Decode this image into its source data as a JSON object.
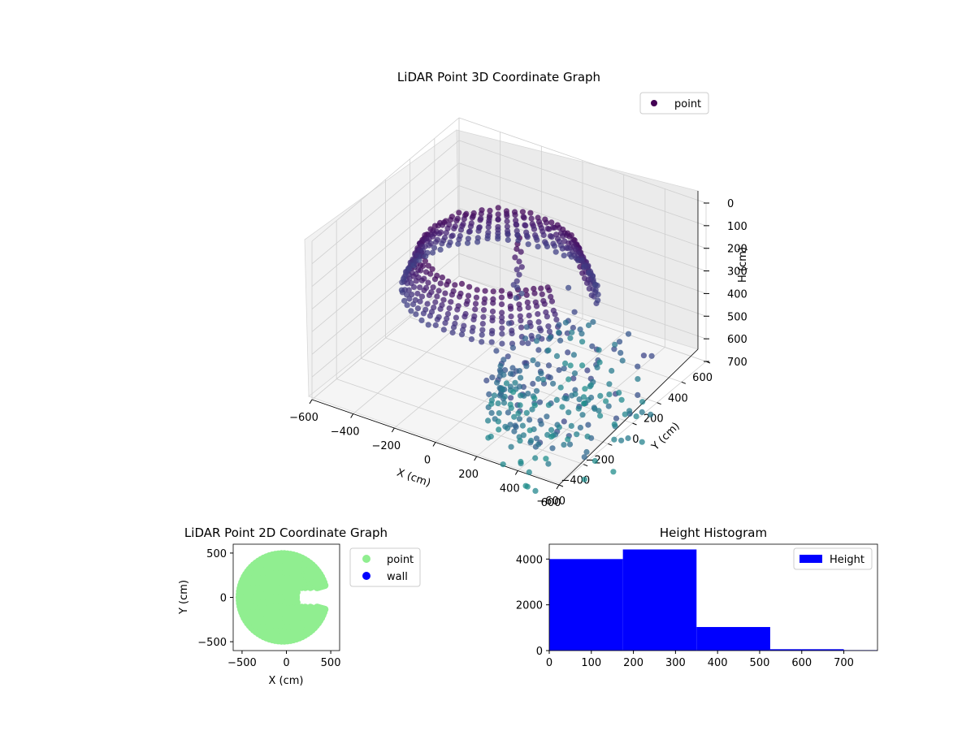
{
  "chart_data": [
    {
      "type": "scatter",
      "title": "LiDAR Point 3D Coordinate Graph",
      "xlabel": "X (cm)",
      "ylabel": "Y (cm)",
      "zlabel": "H (cm)",
      "xlim": [
        -600,
        600
      ],
      "ylim": [
        -600,
        600
      ],
      "zlim": [
        0,
        700
      ],
      "z_inverted": true,
      "xticks": [
        "−600",
        "−400",
        "−200",
        "0",
        "200",
        "400",
        "600"
      ],
      "yticks": [
        "−600",
        "−400",
        "−200",
        "0",
        "200",
        "400",
        "600"
      ],
      "zticks": [
        "0",
        "100",
        "200",
        "300",
        "400",
        "500",
        "600",
        "700"
      ],
      "legend": [
        "point"
      ],
      "legend_position": "top-right",
      "colormap": "viridis (dark purple to teal)",
      "grid": true,
      "series": [
        {
          "name": "point",
          "description": "horseshoe-shaped ring of points around origin, radius ~400-500 cm, stacked by height 0-700 cm",
          "x": [
            -400,
            -300,
            -200,
            0,
            200,
            300,
            350,
            300,
            200,
            0,
            -200,
            -300,
            -400,
            -450
          ],
          "y": [
            0,
            -300,
            -400,
            -450,
            -400,
            -300,
            0,
            300,
            400,
            450,
            400,
            300,
            200,
            100
          ],
          "z": [
            150,
            200,
            250,
            300,
            200,
            150,
            250,
            350,
            400,
            450,
            500,
            550,
            600,
            650
          ]
        }
      ]
    },
    {
      "type": "scatter",
      "title": "LiDAR Point 2D Coordinate Graph",
      "xlabel": "X (cm)",
      "ylabel": "Y (cm)",
      "xlim": [
        -600,
        600
      ],
      "ylim": [
        -600,
        600
      ],
      "xticks": [
        "−500",
        "0",
        "500"
      ],
      "yticks": [
        "−500",
        "0",
        "500"
      ],
      "legend": [
        "point",
        "wall"
      ],
      "legend_position": "outside-right",
      "series": [
        {
          "name": "point",
          "color": "#90ee90",
          "description": "dense filled C-shaped region open toward +X between Y -100 and +100"
        },
        {
          "name": "wall",
          "color": "#0000ff",
          "values": []
        }
      ]
    },
    {
      "type": "bar",
      "title": "Height Histogram",
      "xlim": [
        0,
        780
      ],
      "ylim": [
        0,
        4650
      ],
      "xticks": [
        "0",
        "100",
        "200",
        "300",
        "400",
        "500",
        "600",
        "700"
      ],
      "yticks": [
        "0",
        "2000",
        "4000"
      ],
      "legend": [
        "Height"
      ],
      "legend_position": "top-right",
      "color": "#0000ff",
      "bin_edges": [
        0,
        175,
        350,
        525,
        700,
        780
      ],
      "values": [
        4000,
        4420,
        1030,
        60,
        20
      ]
    }
  ]
}
